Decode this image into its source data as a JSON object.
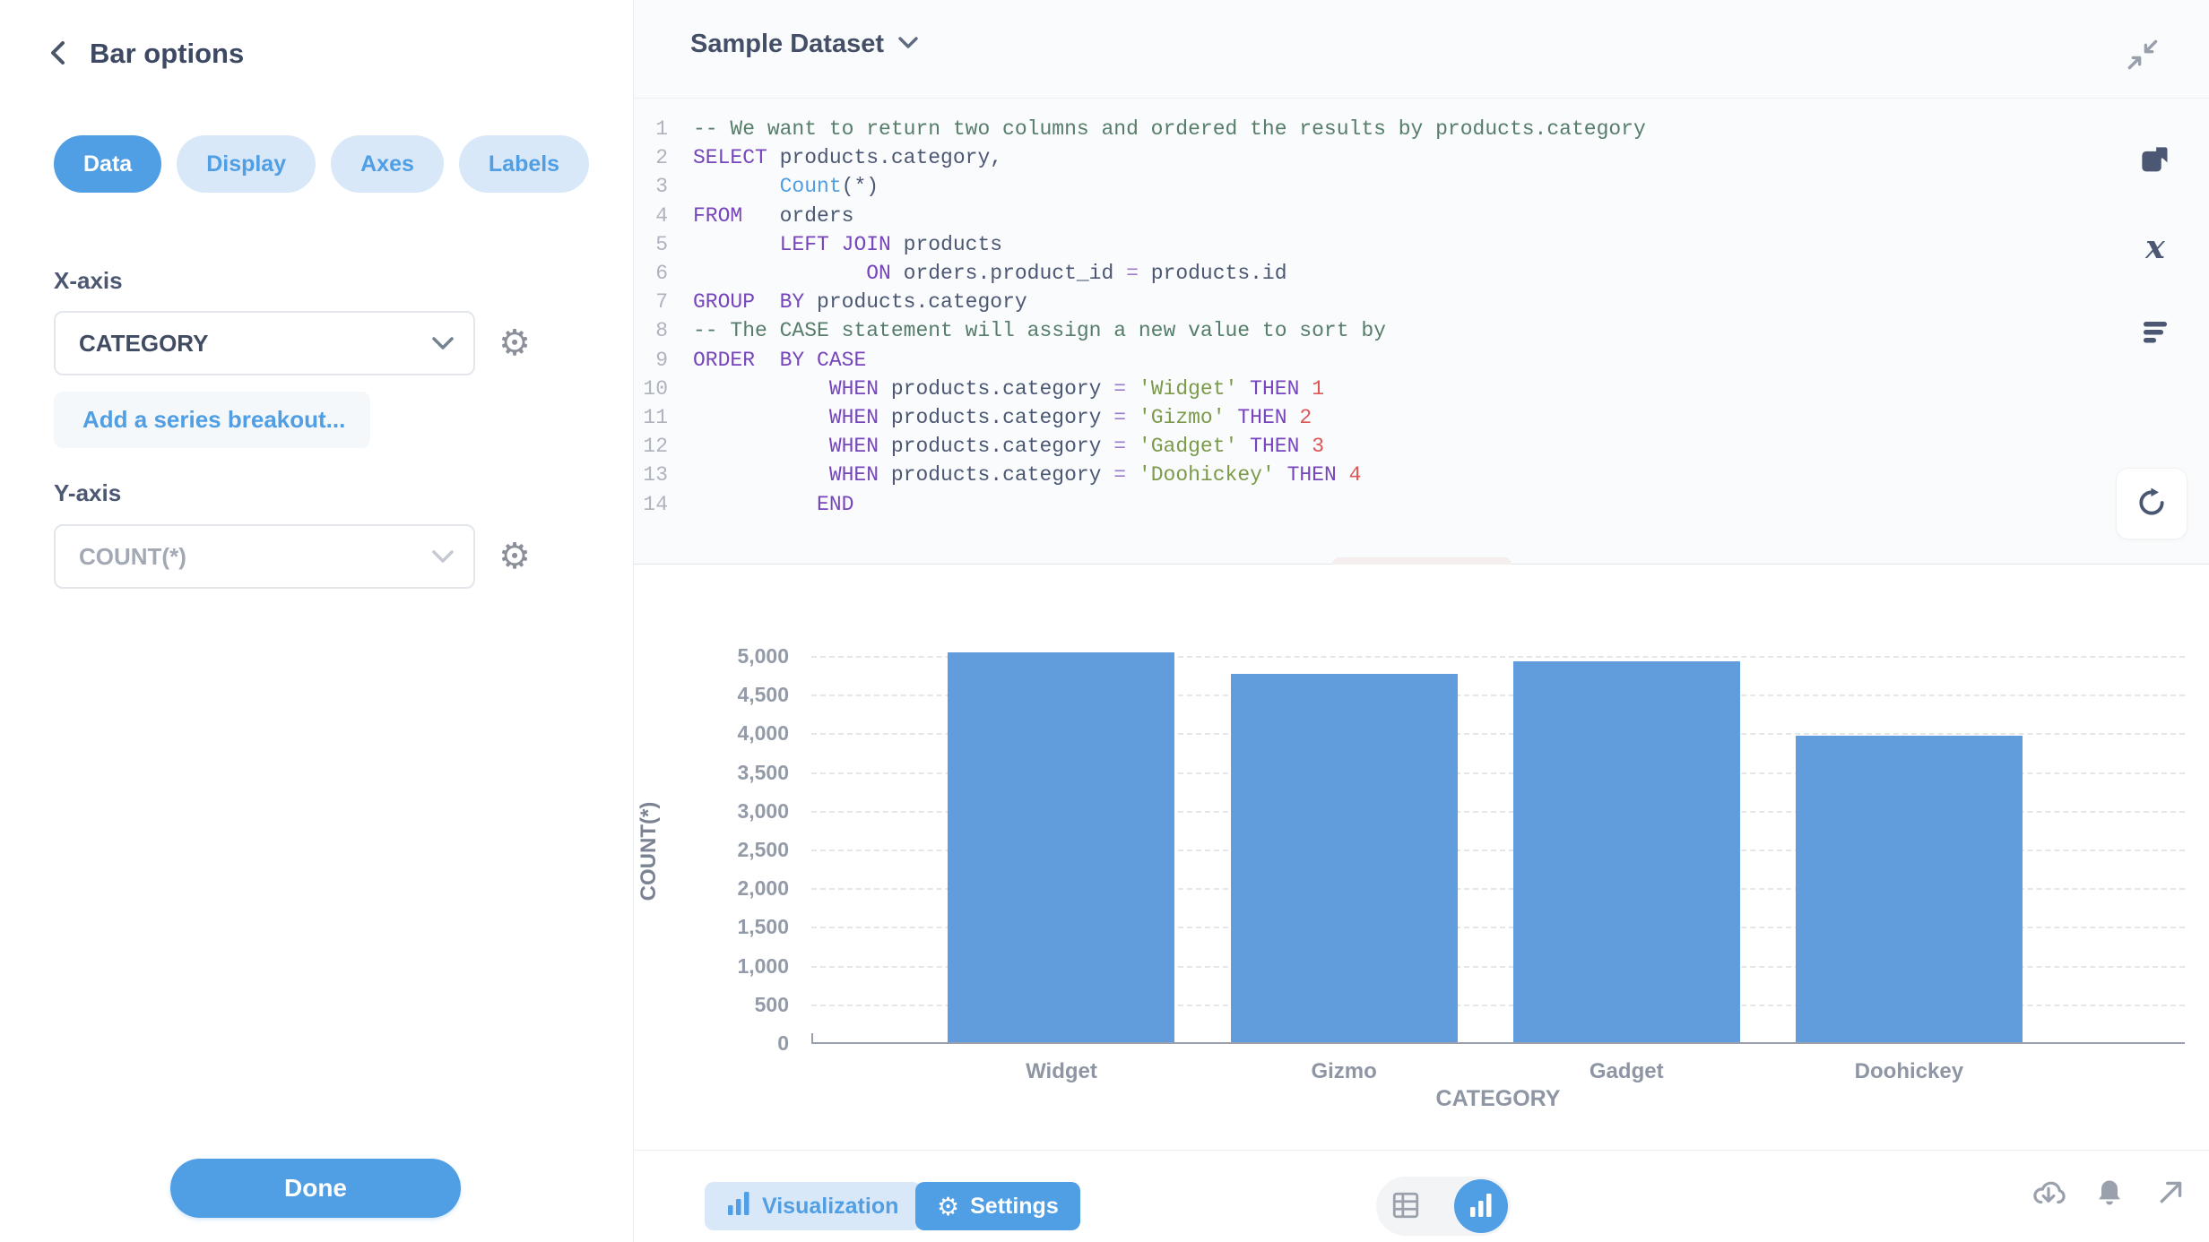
{
  "sidebar": {
    "title": "Bar options",
    "tabs": [
      {
        "label": "Data",
        "active": true
      },
      {
        "label": "Display",
        "active": false
      },
      {
        "label": "Axes",
        "active": false
      },
      {
        "label": "Labels",
        "active": false
      }
    ],
    "x_axis_label": "X-axis",
    "x_axis_value": "CATEGORY",
    "breakout_label": "Add a series breakout...",
    "y_axis_label": "Y-axis",
    "y_axis_value": "COUNT(*)",
    "done_label": "Done"
  },
  "editor": {
    "dataset_name": "Sample Dataset",
    "lines": [
      {
        "n": "1",
        "tokens": [
          [
            "c",
            "-- We want to return two columns and ordered the results by products.category"
          ]
        ]
      },
      {
        "n": "2",
        "tokens": [
          [
            "k",
            "SELECT"
          ],
          [
            "p",
            " products.category,"
          ]
        ]
      },
      {
        "n": "3",
        "tokens": [
          [
            "p",
            "       "
          ],
          [
            "f",
            "Count"
          ],
          [
            "p",
            "(*)"
          ]
        ]
      },
      {
        "n": "4",
        "tokens": [
          [
            "k",
            "FROM"
          ],
          [
            "p",
            "   orders"
          ]
        ]
      },
      {
        "n": "5",
        "tokens": [
          [
            "p",
            "       "
          ],
          [
            "k",
            "LEFT JOIN"
          ],
          [
            "p",
            " products"
          ]
        ]
      },
      {
        "n": "6",
        "tokens": [
          [
            "p",
            "              "
          ],
          [
            "k",
            "ON"
          ],
          [
            "p",
            " orders.product_id "
          ],
          [
            "o",
            "="
          ],
          [
            "p",
            " products.id"
          ]
        ]
      },
      {
        "n": "7",
        "tokens": [
          [
            "k",
            "GROUP"
          ],
          [
            "p",
            "  "
          ],
          [
            "k",
            "BY"
          ],
          [
            "p",
            " products.category"
          ]
        ]
      },
      {
        "n": "8",
        "tokens": [
          [
            "c",
            "-- The CASE statement will assign a new value to sort by"
          ]
        ]
      },
      {
        "n": "9",
        "tokens": [
          [
            "k",
            "ORDER"
          ],
          [
            "p",
            "  "
          ],
          [
            "k",
            "BY"
          ],
          [
            "p",
            " "
          ],
          [
            "k",
            "CASE"
          ]
        ]
      },
      {
        "n": "10",
        "tokens": [
          [
            "p",
            "           "
          ],
          [
            "k",
            "WHEN"
          ],
          [
            "p",
            " products.category "
          ],
          [
            "o",
            "="
          ],
          [
            "p",
            " "
          ],
          [
            "s",
            "'Widget'"
          ],
          [
            "p",
            " "
          ],
          [
            "k",
            "THEN"
          ],
          [
            "p",
            " "
          ],
          [
            "n",
            "1"
          ]
        ]
      },
      {
        "n": "11",
        "tokens": [
          [
            "p",
            "           "
          ],
          [
            "k",
            "WHEN"
          ],
          [
            "p",
            " products.category "
          ],
          [
            "o",
            "="
          ],
          [
            "p",
            " "
          ],
          [
            "s",
            "'Gizmo'"
          ],
          [
            "p",
            " "
          ],
          [
            "k",
            "THEN"
          ],
          [
            "p",
            " "
          ],
          [
            "n",
            "2"
          ]
        ]
      },
      {
        "n": "12",
        "tokens": [
          [
            "p",
            "           "
          ],
          [
            "k",
            "WHEN"
          ],
          [
            "p",
            " products.category "
          ],
          [
            "o",
            "="
          ],
          [
            "p",
            " "
          ],
          [
            "s",
            "'Gadget'"
          ],
          [
            "p",
            " "
          ],
          [
            "k",
            "THEN"
          ],
          [
            "p",
            " "
          ],
          [
            "n",
            "3"
          ]
        ]
      },
      {
        "n": "13",
        "tokens": [
          [
            "p",
            "           "
          ],
          [
            "k",
            "WHEN"
          ],
          [
            "p",
            " products.category "
          ],
          [
            "o",
            "="
          ],
          [
            "p",
            " "
          ],
          [
            "s",
            "'Doohickey'"
          ],
          [
            "p",
            " "
          ],
          [
            "k",
            "THEN"
          ],
          [
            "p",
            " "
          ],
          [
            "n",
            "4"
          ]
        ]
      },
      {
        "n": "14",
        "tokens": [
          [
            "p",
            "          "
          ],
          [
            "k",
            "END"
          ]
        ]
      }
    ]
  },
  "chart_data": {
    "type": "bar",
    "title": "",
    "categories": [
      "Widget",
      "Gizmo",
      "Gadget",
      "Doohickey"
    ],
    "values": [
      5061,
      4784,
      4939,
      3976
    ],
    "xlabel": "CATEGORY",
    "ylabel": "COUNT(*)",
    "ylim": [
      0,
      5000
    ],
    "ytick_step": 500,
    "grid": "horizontal-dashed",
    "legend": "none",
    "bar_color": "#619DDC"
  },
  "footer": {
    "visualization_label": "Visualization",
    "settings_label": "Settings"
  },
  "icons": {
    "gear_glyph": "⚙",
    "x_function_glyph": "x"
  },
  "colors": {
    "brand": "#509EE3",
    "bar": "#619DDC",
    "light_blue_pill": "#D9E8F8",
    "sql_keyword": "#7745BB",
    "sql_comment": "#567D6A",
    "sql_string": "#7C9A4A",
    "sql_number": "#E05555",
    "sql_function": "#4F9EE3",
    "editor_bg": "#F9FBFC"
  }
}
